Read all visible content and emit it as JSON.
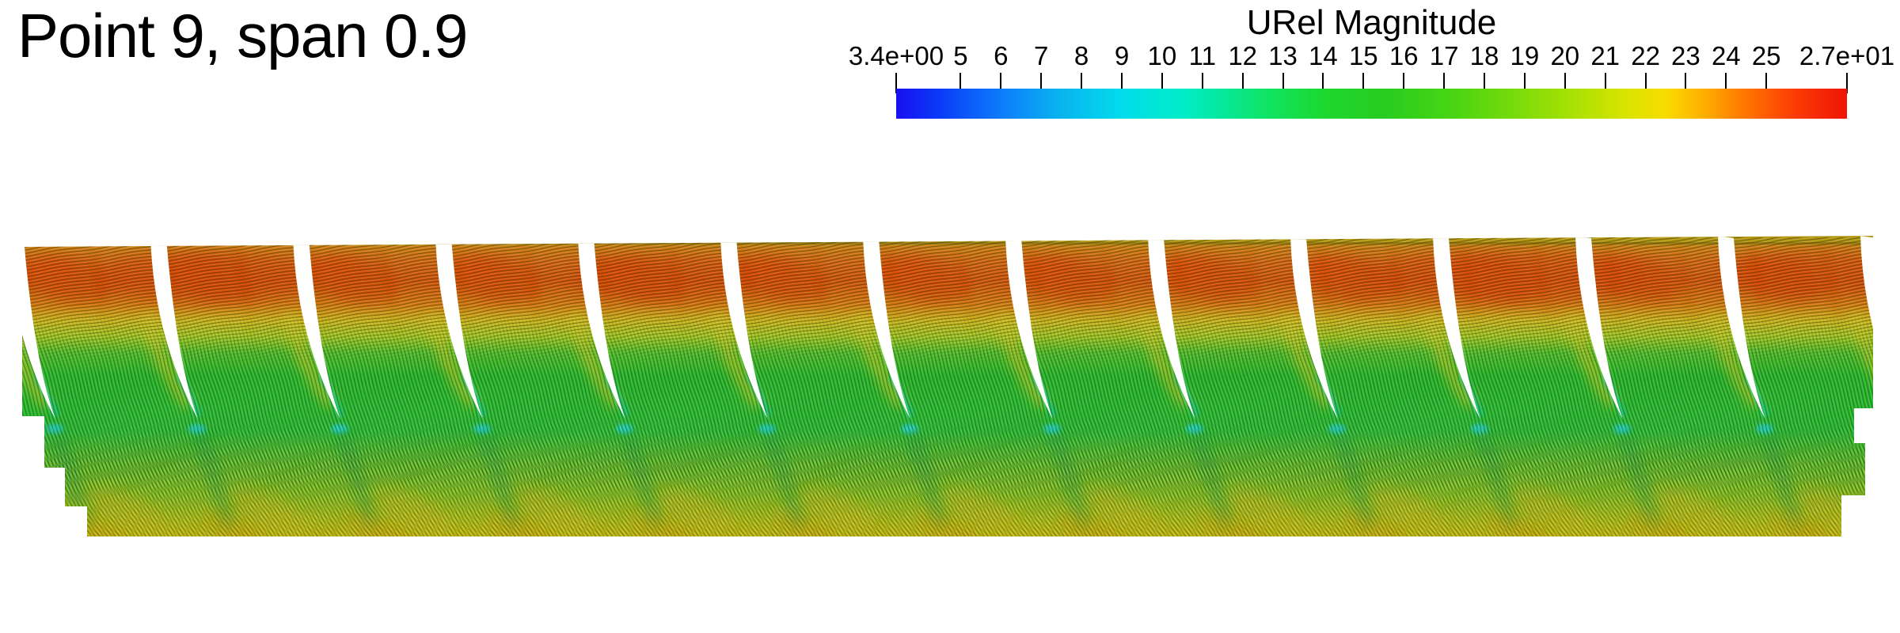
{
  "title": "Point 9, span 0.9",
  "colorbar": {
    "title": "URel Magnitude",
    "min": 3.4,
    "max": 27,
    "ticks": [
      {
        "value": 3.4,
        "label": "3.4e+00"
      },
      {
        "value": 5,
        "label": "5"
      },
      {
        "value": 6,
        "label": "6"
      },
      {
        "value": 7,
        "label": "7"
      },
      {
        "value": 8,
        "label": "8"
      },
      {
        "value": 9,
        "label": "9"
      },
      {
        "value": 10,
        "label": "10"
      },
      {
        "value": 11,
        "label": "11"
      },
      {
        "value": 12,
        "label": "12"
      },
      {
        "value": 13,
        "label": "13"
      },
      {
        "value": 14,
        "label": "14"
      },
      {
        "value": 15,
        "label": "15"
      },
      {
        "value": 16,
        "label": "16"
      },
      {
        "value": 17,
        "label": "17"
      },
      {
        "value": 18,
        "label": "18"
      },
      {
        "value": 19,
        "label": "19"
      },
      {
        "value": 20,
        "label": "20"
      },
      {
        "value": 21,
        "label": "21"
      },
      {
        "value": 22,
        "label": "22"
      },
      {
        "value": 23,
        "label": "23"
      },
      {
        "value": 24,
        "label": "24"
      },
      {
        "value": 25,
        "label": "25"
      },
      {
        "value": 27,
        "label": "2.7e+01"
      }
    ],
    "gradient_stops": [
      [
        3.4,
        "#1810f0"
      ],
      [
        4.5,
        "#0b3cf8"
      ],
      [
        6,
        "#0c7cfa"
      ],
      [
        7.5,
        "#0ab4f0"
      ],
      [
        9,
        "#02dcec"
      ],
      [
        10.5,
        "#00ecc8"
      ],
      [
        11.5,
        "#06e89c"
      ],
      [
        12.5,
        "#0fe468"
      ],
      [
        14,
        "#1cd830"
      ],
      [
        15.5,
        "#28cc20"
      ],
      [
        17,
        "#44d414"
      ],
      [
        18.5,
        "#70da0c"
      ],
      [
        20,
        "#a2e004"
      ],
      [
        21.5,
        "#d8e400"
      ],
      [
        22.5,
        "#f8dc00"
      ],
      [
        23.5,
        "#ffac00"
      ],
      [
        24.5,
        "#ff7400"
      ],
      [
        25.7,
        "#fb3c04"
      ],
      [
        27,
        "#ee1404"
      ]
    ]
  },
  "chart_data": {
    "type": "heatmap",
    "title": "Point 9, span 0.9",
    "colorbar_title": "URel Magnitude",
    "field": "relative velocity magnitude",
    "range": [
      3.4,
      27
    ],
    "tick_labels": [
      "3.4e+00",
      "5",
      "6",
      "7",
      "8",
      "9",
      "10",
      "11",
      "12",
      "13",
      "14",
      "15",
      "16",
      "17",
      "18",
      "19",
      "20",
      "21",
      "22",
      "23",
      "24",
      "25",
      "2.7e+01"
    ],
    "colormap": "blue-cyan-green-yellow-red rainbow",
    "legend_position": "top-center horizontal",
    "scene": {
      "kind": "surface LIC (line integral convolution) flow texture over a linear blade cascade, blades shown as white crescents",
      "blade_passages": 14,
      "regions": [
        {
          "name": "upper passage inflow band",
          "approx_value_range": [
            22,
            26
          ],
          "approx_hex": "#d05508"
        },
        {
          "name": "passage transition layer",
          "approx_value_range": [
            19,
            22
          ],
          "approx_hex": "#ccb119"
        },
        {
          "name": "mid passage core flow",
          "approx_value_range": [
            13,
            17
          ],
          "approx_hex": "#28b42c"
        },
        {
          "name": "blade suction-side / trailing-edge wake",
          "approx_value_range": [
            9,
            12
          ],
          "approx_hex": "#25d2c3"
        },
        {
          "name": "downstream mixing region",
          "approx_value_range": [
            16,
            20
          ],
          "approx_hex": "#a4bd1d"
        }
      ]
    }
  }
}
